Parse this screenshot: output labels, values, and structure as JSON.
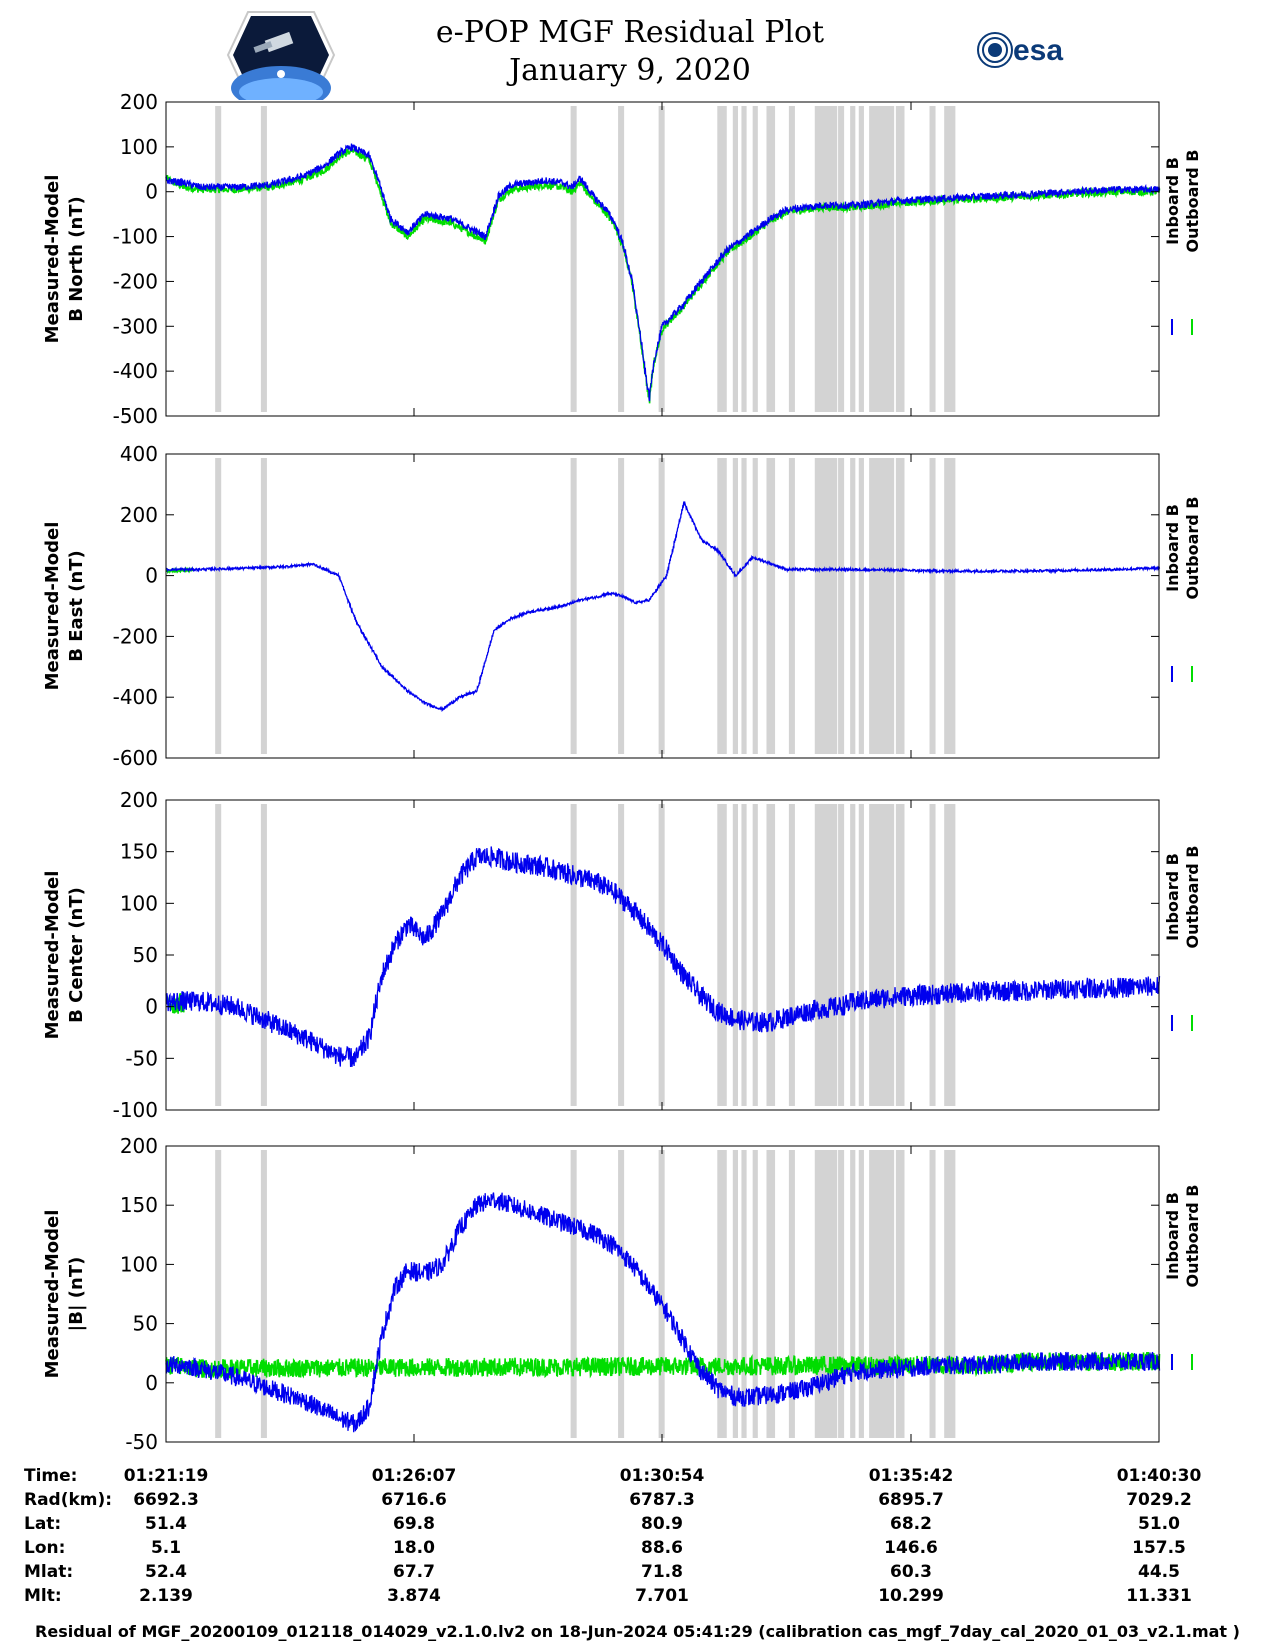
{
  "header": {
    "title_line1": "e-POP MGF Residual Plot",
    "title_line2": "January 9, 2020",
    "logo_left": "CASSIOPE mission patch",
    "logo_right_text": "esa"
  },
  "colors": {
    "inboard": "#0000ee",
    "outboard": "#00dd00",
    "gap": "#d3d3d3"
  },
  "legend": {
    "inboard": "Inboard B",
    "outboard": "Outboard B"
  },
  "time_axis": {
    "range": [
      0,
      1151
    ],
    "tick_labels": [
      "01:21:19",
      "01:26:07",
      "01:30:54",
      "01:35:42",
      "01:40:30"
    ],
    "gray_intervals": [
      [
        57,
        64
      ],
      [
        110,
        117
      ],
      [
        469,
        476
      ],
      [
        524,
        531
      ],
      [
        571,
        578
      ],
      [
        639,
        650
      ],
      [
        657,
        663
      ],
      [
        667,
        673
      ],
      [
        680,
        686
      ],
      [
        696,
        706
      ],
      [
        722,
        729
      ],
      [
        752,
        778
      ],
      [
        779,
        786
      ],
      [
        793,
        799
      ],
      [
        803,
        809
      ],
      [
        815,
        844
      ],
      [
        846,
        856
      ],
      [
        885,
        892
      ],
      [
        902,
        915
      ]
    ]
  },
  "chart_data": [
    {
      "type": "line",
      "id": "north",
      "ylabel_line1": "Measured-Model",
      "ylabel_line2": "B North (nT)",
      "ylim": [
        -500,
        200
      ],
      "yticks": [
        "200",
        "100",
        "0",
        "-100",
        "-200",
        "-300",
        "-400",
        "-500"
      ],
      "noise": 8,
      "series": [
        {
          "name": "Inboard B",
          "x": [
            0,
            20,
            40,
            80,
            120,
            160,
            185,
            200,
            215,
            235,
            245,
            260,
            280,
            300,
            330,
            350,
            370,
            385,
            400,
            420,
            440,
            460,
            470,
            480,
            495,
            510,
            520,
            530,
            540,
            548,
            555,
            560,
            565,
            575,
            585,
            600,
            620,
            650,
            680,
            700,
            720,
            760,
            800,
            850,
            900,
            950,
            1000,
            1050,
            1100,
            1151
          ],
          "y": [
            25,
            20,
            10,
            10,
            15,
            35,
            60,
            85,
            100,
            80,
            30,
            -60,
            -90,
            -50,
            -60,
            -80,
            -100,
            -10,
            15,
            20,
            25,
            20,
            10,
            30,
            -10,
            -40,
            -70,
            -120,
            -200,
            -300,
            -400,
            -460,
            -380,
            -300,
            -280,
            -250,
            -200,
            -130,
            -90,
            -60,
            -40,
            -30,
            -30,
            -20,
            -15,
            -10,
            -5,
            0,
            5,
            5
          ]
        },
        {
          "name": "Outboard B",
          "x": [
            0,
            20,
            40,
            80,
            120,
            160,
            185,
            200,
            215,
            235,
            245,
            260,
            280,
            300,
            330,
            350,
            370,
            385,
            400,
            420,
            440,
            460,
            470,
            480,
            495,
            510,
            520,
            530,
            540,
            548,
            555,
            560,
            565,
            575,
            585,
            600,
            620,
            650,
            680,
            700,
            720,
            760,
            800,
            850,
            900,
            950,
            1000,
            1050,
            1100,
            1151
          ],
          "y": [
            30,
            10,
            5,
            5,
            10,
            28,
            50,
            78,
            92,
            72,
            20,
            -70,
            -100,
            -60,
            -70,
            -90,
            -110,
            -18,
            5,
            10,
            15,
            10,
            0,
            20,
            -18,
            -48,
            -75,
            -125,
            -205,
            -305,
            -405,
            -465,
            -385,
            -305,
            -285,
            -255,
            -205,
            -135,
            -95,
            -65,
            -45,
            -35,
            -35,
            -25,
            -20,
            -15,
            -10,
            -5,
            0,
            0
          ]
        }
      ]
    },
    {
      "type": "line",
      "id": "east",
      "ylabel_line1": "Measured-Model",
      "ylabel_line2": "B East (nT)",
      "ylim": [
        -600,
        400
      ],
      "yticks": [
        "400",
        "200",
        "0",
        "-200",
        "-400",
        "-600"
      ],
      "noise": 4,
      "series": [
        {
          "name": "Inboard B",
          "x": [
            0,
            30,
            60,
            100,
            140,
            170,
            200,
            220,
            250,
            280,
            300,
            320,
            340,
            360,
            380,
            400,
            420,
            440,
            460,
            480,
            500,
            510,
            520,
            530,
            545,
            560,
            580,
            600,
            620,
            640,
            660,
            680,
            720,
            800,
            900,
            1000,
            1100,
            1151
          ],
          "y": [
            20,
            20,
            22,
            25,
            30,
            38,
            0,
            -150,
            -300,
            -380,
            -420,
            -440,
            -400,
            -380,
            -180,
            -140,
            -120,
            -110,
            -100,
            -80,
            -70,
            -60,
            -60,
            -70,
            -90,
            -80,
            0,
            240,
            120,
            80,
            0,
            60,
            20,
            20,
            15,
            15,
            20,
            25
          ]
        },
        {
          "name": "Outboard B",
          "x": [
            0,
            30
          ],
          "y": [
            15,
            18
          ]
        }
      ]
    },
    {
      "type": "line",
      "id": "center",
      "ylabel_line1": "Measured-Model",
      "ylabel_line2": "B Center (nT)",
      "ylim": [
        -100,
        200
      ],
      "yticks": [
        "200",
        "150",
        "100",
        "50",
        "0",
        "-50",
        "-100"
      ],
      "noise": 10,
      "series": [
        {
          "name": "Inboard B",
          "x": [
            0,
            20,
            40,
            80,
            120,
            160,
            200,
            220,
            235,
            250,
            265,
            280,
            300,
            320,
            340,
            360,
            380,
            400,
            420,
            440,
            460,
            480,
            500,
            520,
            540,
            560,
            580,
            600,
            620,
            640,
            660,
            680,
            700,
            720,
            740,
            760,
            780,
            800,
            850,
            900,
            950,
            1000,
            1050,
            1100,
            1151
          ],
          "y": [
            5,
            5,
            5,
            0,
            -15,
            -30,
            -48,
            -50,
            -30,
            30,
            60,
            80,
            65,
            90,
            125,
            145,
            145,
            140,
            138,
            135,
            130,
            125,
            120,
            110,
            95,
            75,
            55,
            30,
            10,
            -5,
            -12,
            -15,
            -15,
            -10,
            -5,
            -2,
            0,
            5,
            10,
            12,
            15,
            15,
            18,
            18,
            20
          ]
        },
        {
          "name": "Outboard B",
          "x": [
            0,
            10,
            20
          ],
          "y": [
            5,
            2,
            4
          ]
        }
      ]
    },
    {
      "type": "line",
      "id": "magnitude",
      "ylabel_line1": "Measured-Model",
      "ylabel_line2": "|B| (nT)",
      "ylim": [
        -50,
        200
      ],
      "yticks": [
        "200",
        "150",
        "100",
        "50",
        "0",
        "-50"
      ],
      "noise": 8,
      "series": [
        {
          "name": "Inboard B",
          "x": [
            0,
            20,
            40,
            80,
            120,
            160,
            200,
            220,
            235,
            250,
            265,
            280,
            300,
            320,
            340,
            360,
            380,
            400,
            420,
            440,
            460,
            480,
            500,
            520,
            540,
            560,
            580,
            600,
            620,
            640,
            660,
            680,
            700,
            720,
            740,
            760,
            780,
            800,
            850,
            900,
            950,
            1000,
            1050,
            1100,
            1151
          ],
          "y": [
            15,
            15,
            12,
            5,
            -5,
            -15,
            -30,
            -35,
            -20,
            40,
            80,
            95,
            92,
            100,
            130,
            150,
            155,
            150,
            145,
            140,
            135,
            130,
            125,
            115,
            100,
            80,
            60,
            35,
            10,
            -5,
            -12,
            -12,
            -10,
            -8,
            -5,
            0,
            5,
            10,
            12,
            15,
            15,
            18,
            18,
            18,
            18
          ]
        },
        {
          "name": "Outboard B",
          "x": [
            0,
            20,
            40,
            900,
            950,
            1000,
            1050,
            1100,
            1151
          ],
          "y": [
            15,
            14,
            12,
            15,
            15,
            18,
            18,
            18,
            18
          ]
        }
      ]
    }
  ],
  "ephemeris": {
    "rows": [
      {
        "label": "Time:",
        "values": [
          "01:21:19",
          "01:26:07",
          "01:30:54",
          "01:35:42",
          "01:40:30"
        ]
      },
      {
        "label": "Rad(km):",
        "values": [
          "6692.3",
          "6716.6",
          "6787.3",
          "6895.7",
          "7029.2"
        ]
      },
      {
        "label": "Lat:",
        "values": [
          "51.4",
          "69.8",
          "80.9",
          "68.2",
          "51.0"
        ]
      },
      {
        "label": "Lon:",
        "values": [
          "5.1",
          "18.0",
          "88.6",
          "146.6",
          "157.5"
        ]
      },
      {
        "label": "Mlat:",
        "values": [
          "52.4",
          "67.7",
          "71.8",
          "60.3",
          "44.5"
        ]
      },
      {
        "label": "Mlt:",
        "values": [
          "2.139",
          "3.874",
          "7.701",
          "10.299",
          "11.331"
        ]
      }
    ]
  },
  "footnote": "Residual of MGF_20200109_012118_014029_v2.1.0.lv2 on 18-Jun-2024 05:41:29 (calibration cas_mgf_7day_cal_2020_01_03_v2.1.mat )"
}
